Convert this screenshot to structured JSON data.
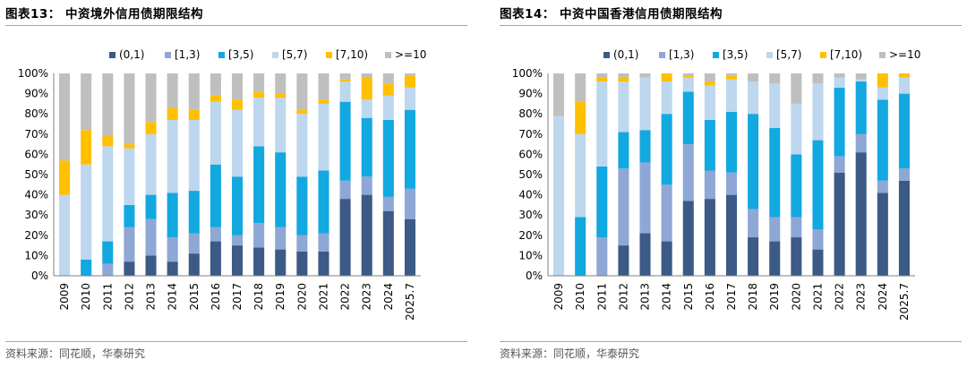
{
  "colors": {
    "(0,1)": "#3b5a85",
    "[1,3)": "#8ea7d4",
    "[3,5)": "#12a8e0",
    "[5,7)": "#bdd7ee",
    "[7,10)": "#ffc000",
    ">=10": "#bfbfbf",
    "rule": "#8fa7c7"
  },
  "charts": [
    {
      "title": "图表13：  中资境外信用债期限结构",
      "source": "资料来源：同花顺，华泰研究"
    },
    {
      "title": "图表14：  中资中国香港信用债期限结构",
      "source": "资料来源：同花顺，华泰研究"
    }
  ],
  "chart_data": [
    {
      "type": "bar",
      "stacked": true,
      "title": "中资境外信用债期限结构",
      "categories": [
        "2009",
        "2010",
        "2011",
        "2012",
        "2013",
        "2014",
        "2015",
        "2016",
        "2017",
        "2018",
        "2019",
        "2020",
        "2021",
        "2022",
        "2023",
        "2024",
        "2025.7"
      ],
      "series": [
        {
          "name": "(0,1)",
          "values": [
            0,
            0,
            0,
            7,
            10,
            7,
            11,
            17,
            15,
            14,
            13,
            12,
            12,
            38,
            40,
            32,
            28
          ]
        },
        {
          "name": "[1,3)",
          "values": [
            0,
            0,
            6,
            17,
            18,
            12,
            10,
            7,
            5,
            12,
            11,
            8,
            9,
            9,
            9,
            7,
            15
          ]
        },
        {
          "name": "[3,5)",
          "values": [
            0,
            8,
            11,
            11,
            12,
            22,
            21,
            31,
            29,
            38,
            37,
            29,
            31,
            39,
            29,
            38,
            39
          ]
        },
        {
          "name": "[5,7)",
          "values": [
            40,
            47,
            47,
            28,
            30,
            36,
            35,
            31,
            33,
            24,
            27,
            31,
            33,
            10,
            9,
            12,
            11
          ]
        },
        {
          "name": "[7,10)",
          "values": [
            17,
            17,
            5,
            2,
            6,
            6,
            5,
            3,
            5,
            3,
            2,
            2,
            2,
            1,
            11,
            6,
            6
          ]
        },
        {
          "name": ">=10",
          "values": [
            43,
            28,
            31,
            35,
            24,
            17,
            18,
            11,
            13,
            9,
            10,
            18,
            13,
            3,
            2,
            5,
            1
          ]
        }
      ],
      "ylim": [
        0,
        100
      ],
      "yticks": [
        "0%",
        "10%",
        "20%",
        "30%",
        "40%",
        "50%",
        "60%",
        "70%",
        "80%",
        "90%",
        "100%"
      ],
      "xlabel": "",
      "ylabel": "",
      "legend": "top"
    },
    {
      "type": "bar",
      "stacked": true,
      "title": "中资中国香港信用债期限结构",
      "categories": [
        "2009",
        "2010",
        "2011",
        "2012",
        "2013",
        "2014",
        "2015",
        "2016",
        "2017",
        "2018",
        "2019",
        "2020",
        "2021",
        "2022",
        "2023",
        "2024",
        "2025.7"
      ],
      "series": [
        {
          "name": "(0,1)",
          "values": [
            0,
            0,
            0,
            15,
            21,
            17,
            37,
            38,
            40,
            19,
            17,
            19,
            13,
            51,
            61,
            41,
            47
          ]
        },
        {
          "name": "[1,3)",
          "values": [
            0,
            0,
            19,
            38,
            35,
            28,
            28,
            14,
            11,
            14,
            12,
            10,
            10,
            8,
            9,
            6,
            6
          ]
        },
        {
          "name": "[3,5)",
          "values": [
            0,
            29,
            35,
            18,
            16,
            35,
            26,
            25,
            30,
            47,
            44,
            31,
            44,
            34,
            26,
            40,
            37
          ]
        },
        {
          "name": "[5,7)",
          "values": [
            79,
            41,
            42,
            25,
            26,
            16,
            7,
            17,
            16,
            16,
            22,
            25,
            28,
            5,
            1,
            6,
            8
          ]
        },
        {
          "name": "[7,10)",
          "values": [
            0,
            16,
            2,
            2,
            0,
            4,
            1,
            2,
            2,
            0,
            0,
            0,
            0,
            0,
            0,
            7,
            2
          ]
        },
        {
          "name": ">=10",
          "values": [
            21,
            14,
            2,
            2,
            2,
            0,
            1,
            4,
            1,
            4,
            5,
            15,
            5,
            2,
            3,
            0,
            0
          ]
        }
      ],
      "ylim": [
        0,
        100
      ],
      "yticks": [
        "0%",
        "10%",
        "20%",
        "30%",
        "40%",
        "50%",
        "60%",
        "70%",
        "80%",
        "90%",
        "100%"
      ],
      "xlabel": "",
      "ylabel": "",
      "legend": "top"
    }
  ]
}
